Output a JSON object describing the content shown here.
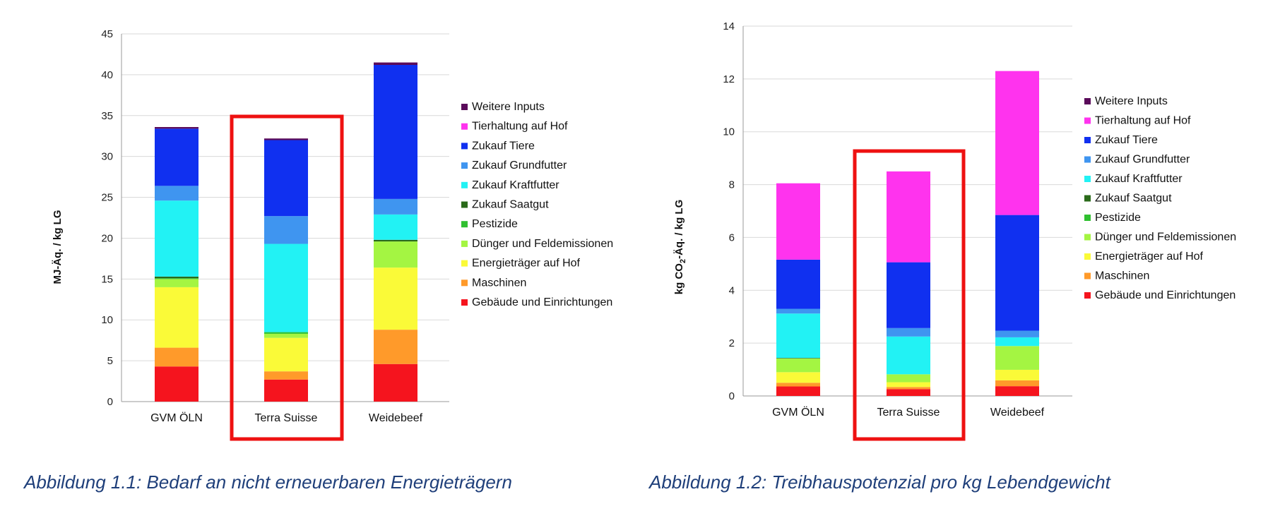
{
  "legend": [
    "Weitere Inputs",
    "Tierhaltung auf Hof",
    "Zukauf Tiere",
    "Zukauf Grundfutter",
    "Zukauf Kraftfutter",
    "Zukauf Saatgut",
    "Pestizide",
    "Dünger und Feldemissionen",
    "Energieträger auf Hof",
    "Maschinen",
    "Gebäude und Einrichtungen"
  ],
  "stack_order": [
    "Gebäude und Einrichtungen",
    "Maschinen",
    "Energieträger auf Hof",
    "Dünger und Feldemissionen",
    "Pestizide",
    "Zukauf Saatgut",
    "Zukauf Kraftfutter",
    "Zukauf Grundfutter",
    "Zukauf Tiere",
    "Tierhaltung auf Hof",
    "Weitere Inputs"
  ],
  "colors": {
    "Weitere Inputs": "#5a0a5a",
    "Tierhaltung auf Hof": "#ff33ee",
    "Zukauf Tiere": "#1030f0",
    "Zukauf Grundfutter": "#3f95f0",
    "Zukauf Kraftfutter": "#22f2f4",
    "Zukauf Saatgut": "#2a6a1a",
    "Pestizide": "#30c030",
    "Dünger und Feldemissionen": "#a4f542",
    "Energieträger auf Hof": "#fafa38",
    "Maschinen": "#ff9a2a",
    "Gebäude und Einrichtungen": "#f5141e"
  },
  "highlight_color": "#ee1111",
  "captions": {
    "left": "Abbildung 1.1:   Bedarf an nicht erneuerbaren Energieträgern",
    "right": "Abbildung 1.2: Treibhauspotenzial pro kg Lebendgewicht"
  },
  "chart_data": [
    {
      "type": "bar",
      "stacked": true,
      "ylabel": "MJ-Äq. / kg LG",
      "ylim": [
        0,
        45
      ],
      "yticks": [
        0,
        5,
        10,
        15,
        20,
        25,
        30,
        35,
        40,
        45
      ],
      "grid": true,
      "legend_position": "right",
      "highlighted_category": "Terra Suisse",
      "categories": [
        "GVM ÖLN",
        "Terra Suisse",
        "Weidebeef"
      ],
      "series": [
        {
          "name": "Gebäude und Einrichtungen",
          "values": [
            4.3,
            2.7,
            4.6
          ]
        },
        {
          "name": "Maschinen",
          "values": [
            2.3,
            1.0,
            4.2
          ]
        },
        {
          "name": "Energieträger auf Hof",
          "values": [
            7.4,
            4.1,
            7.6
          ]
        },
        {
          "name": "Dünger und Feldemissionen",
          "values": [
            1.0,
            0.5,
            3.2
          ]
        },
        {
          "name": "Pestizide",
          "values": [
            0.1,
            0.2,
            0.0
          ]
        },
        {
          "name": "Zukauf Saatgut",
          "values": [
            0.2,
            0.0,
            0.2
          ]
        },
        {
          "name": "Zukauf Kraftfutter",
          "values": [
            9.3,
            10.8,
            3.1
          ]
        },
        {
          "name": "Zukauf Grundfutter",
          "values": [
            1.8,
            3.4,
            1.9
          ]
        },
        {
          "name": "Zukauf Tiere",
          "values": [
            7.0,
            9.3,
            16.4
          ]
        },
        {
          "name": "Tierhaltung auf Hof",
          "values": [
            0.0,
            0.0,
            0.0
          ]
        },
        {
          "name": "Weitere Inputs",
          "values": [
            0.2,
            0.2,
            0.3
          ]
        }
      ]
    },
    {
      "type": "bar",
      "stacked": true,
      "ylabel_main": "kg CO",
      "ylabel_sub": "2",
      "ylabel_rest": "-Äq. / kg LG",
      "ylim": [
        0,
        14
      ],
      "yticks": [
        0,
        2,
        4,
        6,
        8,
        10,
        12,
        14
      ],
      "grid": true,
      "legend_position": "right",
      "highlighted_category": "Terra Suisse",
      "categories": [
        "GVM ÖLN",
        "Terra Suisse",
        "Weidebeef"
      ],
      "series": [
        {
          "name": "Gebäude und Einrichtungen",
          "values": [
            0.36,
            0.26,
            0.37
          ]
        },
        {
          "name": "Maschinen",
          "values": [
            0.14,
            0.08,
            0.22
          ]
        },
        {
          "name": "Energieträger auf Hof",
          "values": [
            0.4,
            0.18,
            0.4
          ]
        },
        {
          "name": "Dünger und Feldemissionen",
          "values": [
            0.52,
            0.3,
            0.9
          ]
        },
        {
          "name": "Pestizide",
          "values": [
            0.0,
            0.0,
            0.0
          ]
        },
        {
          "name": "Zukauf Saatgut",
          "values": [
            0.02,
            0.0,
            0.0
          ]
        },
        {
          "name": "Zukauf Kraftfutter",
          "values": [
            1.68,
            1.43,
            0.33
          ]
        },
        {
          "name": "Zukauf Grundfutter",
          "values": [
            0.18,
            0.32,
            0.25
          ]
        },
        {
          "name": "Zukauf Tiere",
          "values": [
            1.86,
            2.49,
            4.38
          ]
        },
        {
          "name": "Tierhaltung auf Hof",
          "values": [
            2.89,
            3.44,
            5.45
          ]
        },
        {
          "name": "Weitere Inputs",
          "values": [
            0.0,
            0.0,
            0.0
          ]
        }
      ]
    }
  ]
}
